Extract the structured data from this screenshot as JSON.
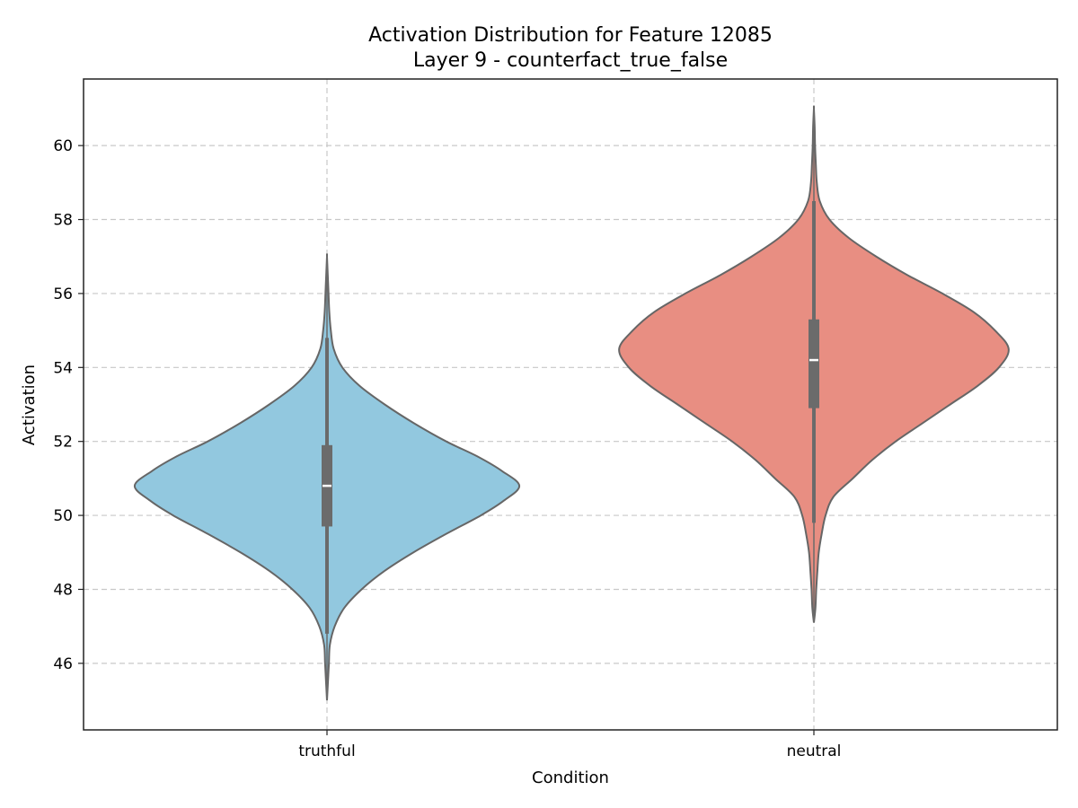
{
  "chart_data": {
    "type": "violin",
    "title": "Activation Distribution for Feature 12085",
    "subtitle": "Layer 9 - counterfact_true_false",
    "xlabel": "Condition",
    "ylabel": "Activation",
    "ylim": [
      44.2,
      61.8
    ],
    "yticks": [
      46,
      48,
      50,
      52,
      54,
      56,
      58,
      60
    ],
    "grid": true,
    "categories": [
      "truthful",
      "neutral"
    ],
    "series": [
      {
        "category": "truthful",
        "color": "#92c8df",
        "min": 45.0,
        "q1": 49.7,
        "median": 50.8,
        "q3": 51.9,
        "max": 57.0,
        "whisker_low": 46.8,
        "whisker_high": 54.8,
        "mode": 50.8,
        "max_halfwidth": 0.79,
        "density_profile": [
          [
            45.0,
            0.0
          ],
          [
            45.5,
            0.005
          ],
          [
            46.0,
            0.01
          ],
          [
            46.5,
            0.015
          ],
          [
            47.0,
            0.04
          ],
          [
            47.5,
            0.09
          ],
          [
            48.0,
            0.18
          ],
          [
            48.5,
            0.3
          ],
          [
            49.0,
            0.45
          ],
          [
            49.5,
            0.62
          ],
          [
            50.0,
            0.8
          ],
          [
            50.4,
            0.92
          ],
          [
            50.8,
            1.0
          ],
          [
            51.2,
            0.91
          ],
          [
            51.6,
            0.78
          ],
          [
            52.0,
            0.62
          ],
          [
            52.5,
            0.45
          ],
          [
            53.0,
            0.3
          ],
          [
            53.5,
            0.17
          ],
          [
            54.0,
            0.08
          ],
          [
            54.5,
            0.035
          ],
          [
            55.0,
            0.02
          ],
          [
            55.5,
            0.012
          ],
          [
            56.0,
            0.008
          ],
          [
            56.5,
            0.004
          ],
          [
            57.0,
            0.0
          ]
        ]
      },
      {
        "category": "neutral",
        "color": "#e88e82",
        "min": 47.1,
        "q1": 52.9,
        "median": 54.2,
        "q3": 55.3,
        "max": 61.0,
        "whisker_low": 49.8,
        "whisker_high": 58.5,
        "mode": 54.5,
        "max_halfwidth": 0.8,
        "density_profile": [
          [
            47.1,
            0.0
          ],
          [
            47.5,
            0.008
          ],
          [
            48.0,
            0.012
          ],
          [
            48.5,
            0.018
          ],
          [
            49.0,
            0.025
          ],
          [
            49.5,
            0.04
          ],
          [
            50.0,
            0.06
          ],
          [
            50.5,
            0.1
          ],
          [
            51.0,
            0.2
          ],
          [
            51.5,
            0.3
          ],
          [
            52.0,
            0.42
          ],
          [
            52.5,
            0.56
          ],
          [
            53.0,
            0.7
          ],
          [
            53.5,
            0.84
          ],
          [
            54.0,
            0.95
          ],
          [
            54.5,
            1.0
          ],
          [
            55.0,
            0.93
          ],
          [
            55.5,
            0.82
          ],
          [
            56.0,
            0.66
          ],
          [
            56.5,
            0.48
          ],
          [
            57.0,
            0.32
          ],
          [
            57.5,
            0.18
          ],
          [
            58.0,
            0.08
          ],
          [
            58.5,
            0.03
          ],
          [
            59.0,
            0.015
          ],
          [
            59.5,
            0.01
          ],
          [
            60.0,
            0.006
          ],
          [
            60.5,
            0.004
          ],
          [
            61.0,
            0.0
          ]
        ]
      }
    ]
  }
}
